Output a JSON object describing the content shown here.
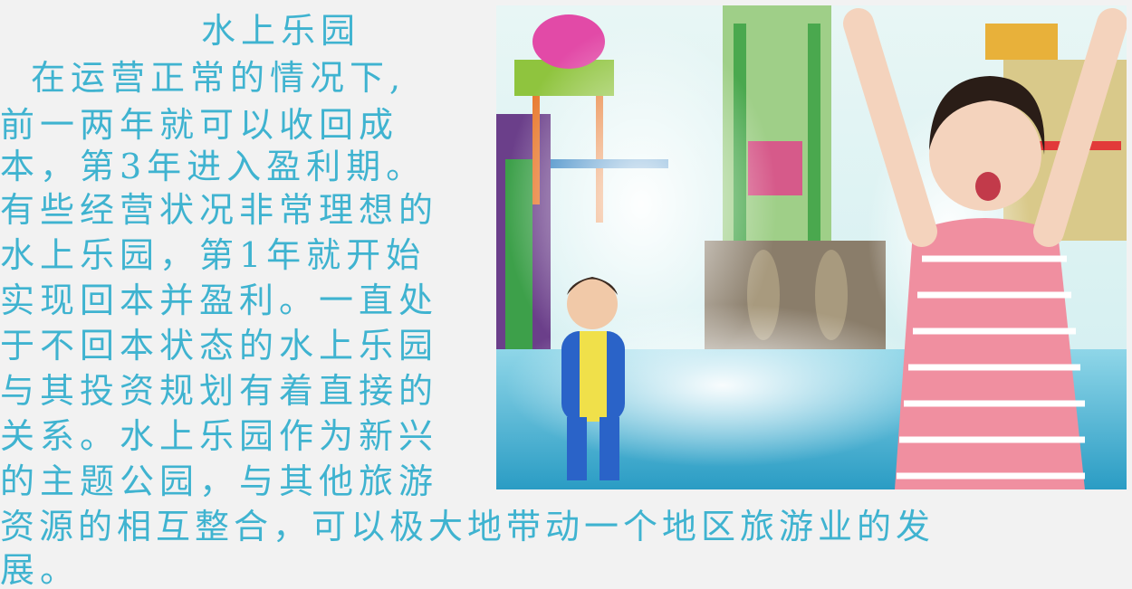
{
  "slide": {
    "title": "水上乐园",
    "paragraph_lines": [
      "在运营正常的情况下,",
      "前一两年就可以收回成",
      "本，第3年进入盈利期。",
      "有些经营状况非常理想的",
      "水上乐园，第1年就开始",
      "实现回本并盈利。一直处",
      "于不回本状态的水上乐园",
      "与其投资规划有着直接的",
      "关系。水上乐园作为新兴",
      "的主题公园，与其他旅游",
      "资源的相互整合，可以极大地带动一个地区旅游业的发",
      "展。"
    ]
  },
  "colors": {
    "text": "#3fb3d0",
    "background": "#f2f2f2"
  }
}
